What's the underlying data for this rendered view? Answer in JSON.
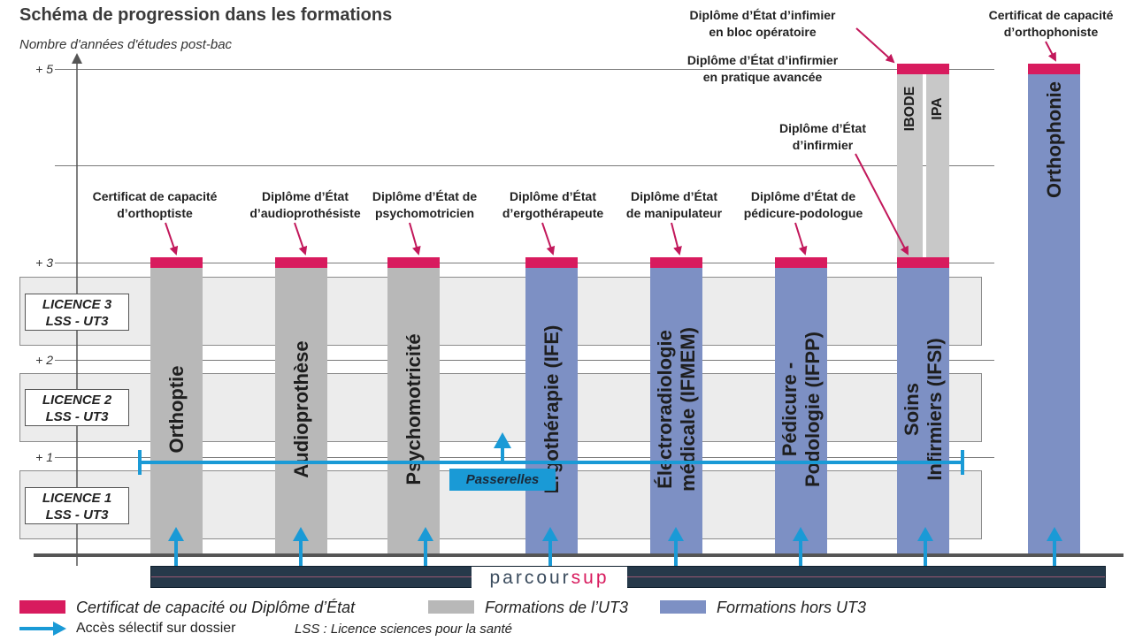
{
  "header": {
    "title": "Schéma de progression dans les formations",
    "y_axis_label": "Nombre d'années d'études post-bac"
  },
  "levels": [
    "+ 5",
    "+ 3",
    "+ 2",
    "+ 1"
  ],
  "licences": [
    {
      "line1": "LICENCE 3",
      "line2": "LSS - UT3"
    },
    {
      "line1": "LICENCE 2",
      "line2": "LSS - UT3"
    },
    {
      "line1": "LICENCE 1",
      "line2": "LSS - UT3"
    }
  ],
  "formations": [
    {
      "name": "Orthoptie",
      "group": "UT3",
      "years": 3,
      "cap1": "Certificat de capacité",
      "cap2": "d’orthoptiste"
    },
    {
      "name": "Audioprothèse",
      "group": "UT3",
      "years": 3,
      "cap1": "Diplôme d’État",
      "cap2": "d’audioprothésiste"
    },
    {
      "name": "Psychomotricité",
      "group": "UT3",
      "years": 3,
      "cap1": "Diplôme d’État de",
      "cap2": "psychomotricien"
    },
    {
      "name": "Ergothérapie (IFE)",
      "group": "hors UT3",
      "years": 3,
      "cap1": "Diplôme d’État",
      "cap2": "d’ergothérapeute"
    },
    {
      "name1": "Électroradiologie",
      "name2": "médicale (IFMEM)",
      "group": "hors UT3",
      "years": 3,
      "cap1": "Diplôme d’État",
      "cap2": "de manipulateur"
    },
    {
      "name1": "Pédicure -",
      "name2": "Podologie (IFPP)",
      "group": "hors UT3",
      "years": 3,
      "cap1": "Diplôme d’État de",
      "cap2": "pédicure-podologue"
    },
    {
      "name1": "Soins",
      "name2": "Infirmiers (IFSI)",
      "group": "hors UT3",
      "years": 3,
      "cap1": "Diplôme d’État",
      "cap2": "d’infirmier"
    },
    {
      "name": "Orthophonie",
      "group": "hors UT3",
      "years": 5,
      "cap1": "Certificat de capacité",
      "cap2": "d’orthophoniste"
    }
  ],
  "specialisations": [
    {
      "name": "IBODE",
      "years": 5
    },
    {
      "name": "IPA",
      "years": 5
    }
  ],
  "top_captions": {
    "bloc1": "Diplôme d’État d’infimier",
    "bloc2": "en bloc opératoire",
    "pa1": "Diplôme d’État d’infirmier",
    "pa2": "en pratique avancée"
  },
  "passerelles": "Passerelles",
  "parcoursup": {
    "part1": "parcour",
    "part2": "sup"
  },
  "legend": {
    "red": "Certificat de capacité ou Diplôme d’État",
    "grey": "Formations de l’UT3",
    "blue": "Formations hors UT3",
    "arrow": "Accès sélectif sur dossier",
    "lss": "LSS : Licence sciences pour la santé"
  },
  "colors": {
    "red": "#d81b5e",
    "grey": "#b8b8b8",
    "blue": "#7d90c4",
    "arrow": "#1a9ad6",
    "parcoursup_band": "#26394a"
  }
}
